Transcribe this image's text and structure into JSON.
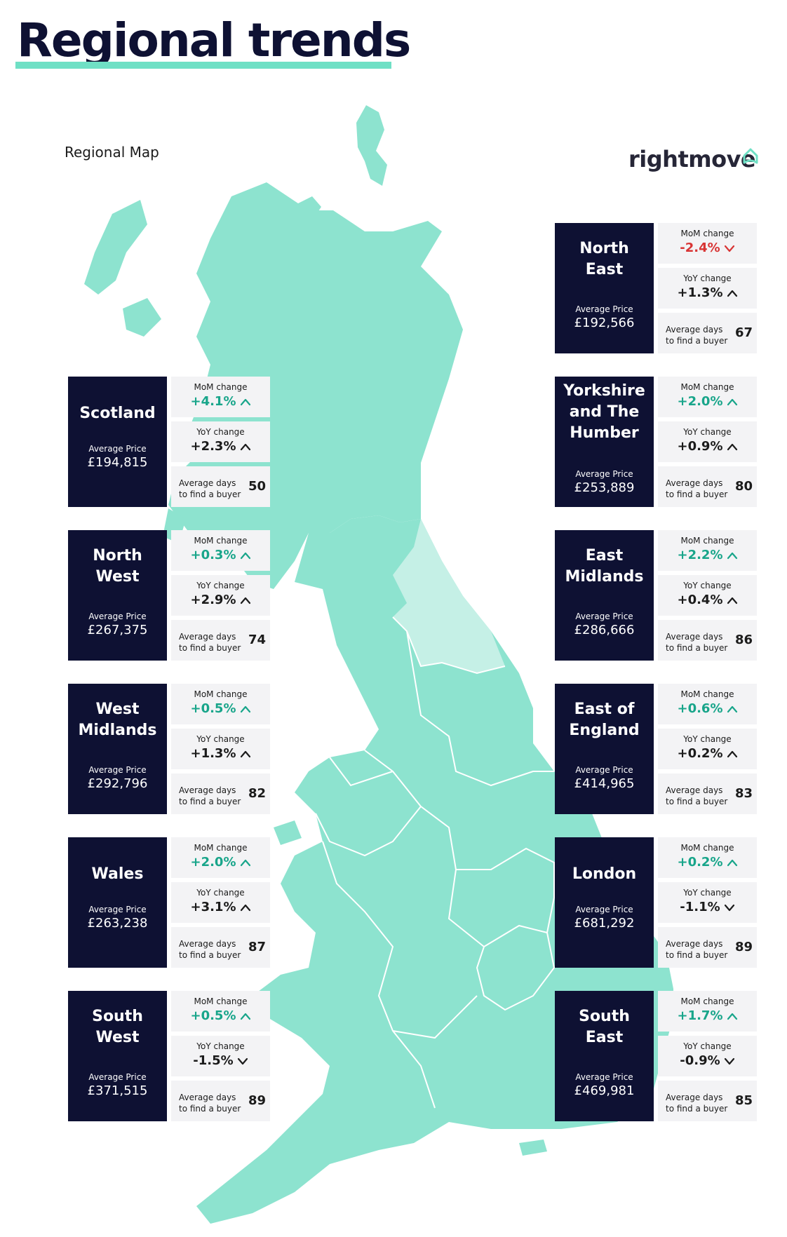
{
  "header": {
    "title": "Regional trends",
    "map_label": "Regional Map",
    "brand": "rightmove",
    "brand_icon": "house-outline-icon"
  },
  "colors": {
    "navy": "#0e1133",
    "mint": "#8de3cf",
    "mint_light": "#c5f0e6",
    "accent": "#6fe0c5",
    "positive": "#18a58a",
    "negative": "#d83434",
    "panel": "#f3f3f5"
  },
  "labels": {
    "mom": "MoM change",
    "yoy": "YoY change",
    "avg_price": "Average Price",
    "days_line1": "Average days",
    "days_line2": "to find a buyer"
  },
  "regions": [
    {
      "name_lines": [
        "Scotland"
      ],
      "avg_price": "£194,815",
      "mom": "+4.1%",
      "mom_dir": "up",
      "mom_tone": "pos",
      "yoy": "+2.3%",
      "yoy_dir": "up",
      "days": "50"
    },
    {
      "name_lines": [
        "North",
        "West"
      ],
      "avg_price": "£267,375",
      "mom": "+0.3%",
      "mom_dir": "up",
      "mom_tone": "pos",
      "yoy": "+2.9%",
      "yoy_dir": "up",
      "days": "74"
    },
    {
      "name_lines": [
        "West",
        "Midlands"
      ],
      "avg_price": "£292,796",
      "mom": "+0.5%",
      "mom_dir": "up",
      "mom_tone": "pos",
      "yoy": "+1.3%",
      "yoy_dir": "up",
      "days": "82"
    },
    {
      "name_lines": [
        "Wales"
      ],
      "avg_price": "£263,238",
      "mom": "+2.0%",
      "mom_dir": "up",
      "mom_tone": "pos",
      "yoy": "+3.1%",
      "yoy_dir": "up",
      "days": "87"
    },
    {
      "name_lines": [
        "South",
        "West"
      ],
      "avg_price": "£371,515",
      "mom": "+0.5%",
      "mom_dir": "up",
      "mom_tone": "pos",
      "yoy": "-1.5%",
      "yoy_dir": "down",
      "days": "89"
    },
    {
      "name_lines": [
        "North",
        "East"
      ],
      "avg_price": "£192,566",
      "mom": "-2.4%",
      "mom_dir": "down",
      "mom_tone": "neg",
      "yoy": "+1.3%",
      "yoy_dir": "up",
      "days": "67"
    },
    {
      "name_lines": [
        "Yorkshire",
        "and The",
        "Humber"
      ],
      "avg_price": "£253,889",
      "mom": "+2.0%",
      "mom_dir": "up",
      "mom_tone": "pos",
      "yoy": "+0.9%",
      "yoy_dir": "up",
      "days": "80"
    },
    {
      "name_lines": [
        "East",
        "Midlands"
      ],
      "avg_price": "£286,666",
      "mom": "+2.2%",
      "mom_dir": "up",
      "mom_tone": "pos",
      "yoy": "+0.4%",
      "yoy_dir": "up",
      "days": "86"
    },
    {
      "name_lines": [
        "East of",
        "England"
      ],
      "avg_price": "£414,965",
      "mom": "+0.6%",
      "mom_dir": "up",
      "mom_tone": "pos",
      "yoy": "+0.2%",
      "yoy_dir": "up",
      "days": "83"
    },
    {
      "name_lines": [
        "London"
      ],
      "avg_price": "£681,292",
      "mom": "+0.2%",
      "mom_dir": "up",
      "mom_tone": "pos",
      "yoy": "-1.1%",
      "yoy_dir": "down",
      "days": "89"
    },
    {
      "name_lines": [
        "South",
        "East"
      ],
      "avg_price": "£469,981",
      "mom": "+1.7%",
      "mom_dir": "up",
      "mom_tone": "pos",
      "yoy": "-0.9%",
      "yoy_dir": "down",
      "days": "85"
    }
  ]
}
